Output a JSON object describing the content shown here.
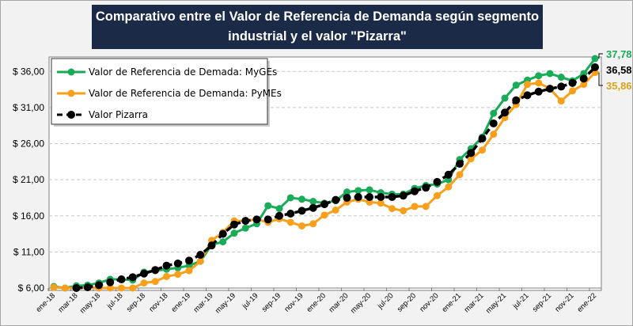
{
  "chart_data": {
    "type": "line",
    "title": "Comparativo entre el Valor de Referencia de Demanda según segmento industrial y el valor \"Pizarra\"",
    "ylim": [
      6,
      38
    ],
    "yticks": [
      6,
      11,
      16,
      21,
      26,
      31,
      36
    ],
    "ytick_labels": [
      "$ 6,00",
      "$ 11,00",
      "$ 16,00",
      "$ 21,00",
      "$ 26,00",
      "$ 31,00",
      "$ 36,00"
    ],
    "grid": "horizontal dashed",
    "legend_placement": "top-left",
    "x": [
      "ene-18",
      "feb-18",
      "mar-18",
      "abr-18",
      "may-18",
      "jun-18",
      "jul-18",
      "ago-18",
      "sep-18",
      "oct-18",
      "nov-18",
      "dic-18",
      "ene-19",
      "feb-19",
      "mar-19",
      "abr-19",
      "may-19",
      "jun-19",
      "jul-19",
      "ago-19",
      "sep-19",
      "oct-19",
      "nov-19",
      "dic-19",
      "ene-20",
      "feb-20",
      "mar-20",
      "abr-20",
      "may-20",
      "jun-20",
      "jul-20",
      "ago-20",
      "sep-20",
      "oct-20",
      "nov-20",
      "dic-20",
      "ene-21",
      "feb-21",
      "mar-21",
      "abr-21",
      "may-21",
      "jun-21",
      "jul-21",
      "ago-21",
      "sep-21",
      "oct-21",
      "nov-21",
      "dic-21",
      "ene-22"
    ],
    "xtick_labels": [
      "ene-18",
      "mar-18",
      "may-18",
      "jul-18",
      "sep-18",
      "nov-18",
      "ene-19",
      "mar-19",
      "may-19",
      "jul-19",
      "sep-19",
      "nov-19",
      "ene-20",
      "mar-20",
      "may-20",
      "jul-20",
      "sep-20",
      "nov-20",
      "ene-21",
      "mar-21",
      "may-21",
      "jul-21",
      "sep-21",
      "nov-21",
      "ene-22"
    ],
    "series": [
      {
        "name": "Valor de Referencia de Demada: MyGEs",
        "color": "#1aab58",
        "dash": false,
        "values": [
          6.2,
          6.0,
          6.3,
          6.4,
          6.7,
          7.2,
          7.2,
          7.1,
          8.2,
          8.4,
          8.6,
          8.8,
          9.1,
          9.7,
          12.0,
          12.4,
          13.6,
          14.3,
          14.9,
          17.4,
          17.0,
          18.5,
          18.3,
          18.0,
          17.75,
          18.1,
          19.3,
          19.5,
          19.6,
          19.2,
          19.0,
          19.0,
          19.8,
          20.2,
          20.4,
          21.0,
          23.8,
          25.3,
          26.9,
          30.2,
          32.3,
          34.1,
          34.8,
          35.4,
          35.7,
          35.2,
          34.7,
          35.7,
          37.78
        ],
        "last_label": "37,78"
      },
      {
        "name": "Valor de Referencia de Demanda: PyMEs",
        "color": "#f7a01c",
        "dash": false,
        "values": [
          6.1,
          6.0,
          6.0,
          6.1,
          6.0,
          6.0,
          6.0,
          6.0,
          6.7,
          6.9,
          7.6,
          7.9,
          8.4,
          9.7,
          12.6,
          13.7,
          15.3,
          15.3,
          15.5,
          15.1,
          15.6,
          15.1,
          14.6,
          14.9,
          16.1,
          16.8,
          17.9,
          18.3,
          17.9,
          17.75,
          17.0,
          16.7,
          17.3,
          17.3,
          18.8,
          20.0,
          21.7,
          23.9,
          25.1,
          27.3,
          29.6,
          31.4,
          34.2,
          34.4,
          33.6,
          31.9,
          33.3,
          34.2,
          35.86
        ],
        "last_label": "35,86"
      },
      {
        "name": "Valor Pizarra",
        "color": "#000000",
        "dash": true,
        "values": [
          null,
          null,
          6.0,
          6.1,
          6.4,
          6.8,
          7.2,
          7.5,
          8.0,
          8.5,
          9.1,
          9.4,
          9.8,
          10.6,
          11.9,
          13.5,
          14.8,
          15.3,
          15.5,
          15.5,
          16.0,
          16.3,
          16.7,
          17.1,
          17.6,
          18.2,
          18.5,
          18.6,
          18.6,
          18.6,
          18.6,
          18.8,
          19.4,
          19.9,
          20.7,
          21.7,
          23.2,
          24.7,
          26.7,
          28.8,
          30.3,
          32.0,
          32.7,
          33.2,
          33.6,
          33.9,
          34.4,
          35.0,
          36.58
        ],
        "last_label": "36,58"
      }
    ],
    "callout_colors": [
      "#1aab58",
      "#000000",
      "#d9a21b"
    ]
  }
}
